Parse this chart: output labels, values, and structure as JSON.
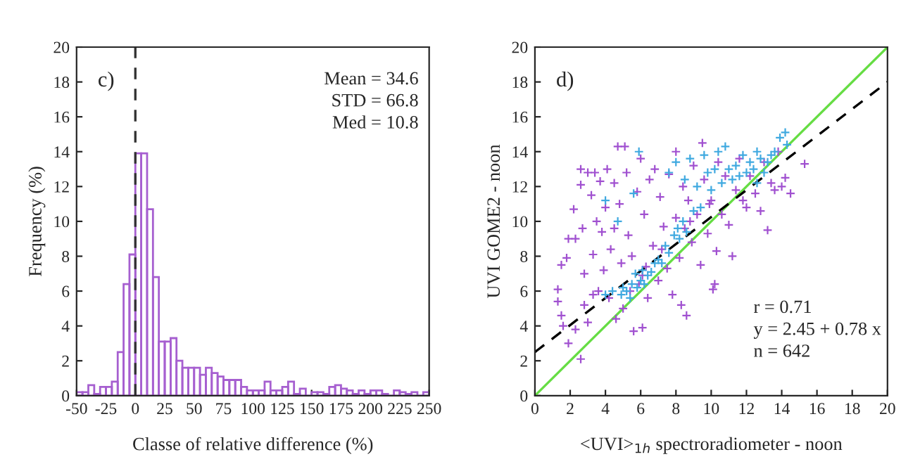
{
  "chart_data": [
    {
      "type": "histogram",
      "xlabel": "Classe of relative difference (%)",
      "ylabel": "Frequency (%)",
      "bins": [
        -50,
        -45,
        -40,
        -35,
        -30,
        -25,
        -20,
        -15,
        -10,
        -5,
        0,
        5,
        10,
        15,
        20,
        25,
        30,
        35,
        40,
        45,
        50,
        55,
        60,
        65,
        70,
        75,
        80,
        85,
        90,
        95,
        100,
        105,
        110,
        115,
        120,
        125,
        130,
        135,
        140,
        145,
        150,
        155,
        160,
        165,
        170,
        175,
        180,
        185,
        190,
        195,
        200,
        205,
        210,
        215,
        220,
        225,
        230,
        235,
        240,
        245,
        250
      ],
      "values": [
        0.2,
        0.2,
        0.6,
        0.1,
        0.5,
        0.5,
        0.8,
        2.5,
        6.4,
        8.1,
        13.9,
        13.9,
        10.7,
        6.8,
        3.1,
        3.1,
        3.3,
        2.0,
        1.6,
        1.6,
        1.6,
        1.2,
        1.6,
        1.3,
        1.1,
        0.9,
        0.9,
        0.9,
        0.5,
        0.3,
        0.3,
        0.3,
        0.8,
        0.3,
        0.3,
        0.5,
        0.8,
        0.1,
        0.4,
        0.0,
        0.2,
        0.2,
        0.1,
        0.5,
        0.6,
        0.4,
        0.3,
        0.1,
        0.3,
        0.1,
        0.3,
        0.3,
        0.1,
        0.0,
        0.3,
        0.2,
        0.1,
        0.2,
        0.0,
        0.2
      ],
      "color": "#a65fd0",
      "xlim": [
        -50,
        250
      ],
      "xticks": [
        -50,
        -25,
        0,
        25,
        50,
        75,
        100,
        125,
        150,
        175,
        200,
        225,
        250
      ],
      "ylim": [
        0,
        20
      ],
      "yticks": [
        0,
        2,
        4,
        6,
        8,
        10,
        12,
        14,
        16,
        18,
        20
      ],
      "ref_lines": [
        {
          "axis": "x",
          "value": 0,
          "color": "#333333",
          "line_style": "dashed"
        }
      ],
      "annotations": [
        "c)",
        "Mean = 34.6\nSTD = 66.8\nMed = 10.8"
      ],
      "grid": false
    },
    {
      "type": "scatter",
      "xlabel": "<UVI>$_{1h}$ spectroradiometer - noon",
      "ylabel": "UVI GOME2 - noon",
      "xlim": [
        0,
        20
      ],
      "xticks": [
        0,
        2,
        4,
        6,
        8,
        10,
        12,
        14,
        16,
        18,
        20
      ],
      "ylim": [
        0,
        20
      ],
      "yticks": [
        0,
        2,
        4,
        6,
        8,
        10,
        12,
        14,
        16,
        18,
        20
      ],
      "marker": "cross",
      "grid": false,
      "series": [
        {
          "type": "scatter",
          "color": "#a050d0",
          "x": [
            1.3,
            1.3,
            1.5,
            1.6,
            1.5,
            1.8,
            1.9,
            1.9,
            2.2,
            2.3,
            2.3,
            2.6,
            2.6,
            2.6,
            2.7,
            2.8,
            2.8,
            3.0,
            3.0,
            3.2,
            3.3,
            3.3,
            3.4,
            3.5,
            3.6,
            3.7,
            3.8,
            3.9,
            4.0,
            4.1,
            4.2,
            4.3,
            4.5,
            4.5,
            4.6,
            4.7,
            4.8,
            4.9,
            5.0,
            5.1,
            5.2,
            5.3,
            5.5,
            5.6,
            5.8,
            5.9,
            6.0,
            6.1,
            6.2,
            6.4,
            6.5,
            6.7,
            6.8,
            7.0,
            7.1,
            7.3,
            7.5,
            7.6,
            7.8,
            8.0,
            8.0,
            8.2,
            8.3,
            8.4,
            8.5,
            8.6,
            8.7,
            8.9,
            9.0,
            9.2,
            9.4,
            9.5,
            9.6,
            9.8,
            10.0,
            10.1,
            10.2,
            10.3,
            10.4,
            10.6,
            10.8,
            11.0,
            11.2,
            11.4,
            11.6,
            11.8,
            12.0,
            12.2,
            12.5,
            12.8,
            13.0,
            13.2,
            13.4,
            13.6,
            13.8,
            14.2,
            14.5,
            15.3,
            14.0,
            6.3,
            7.2,
            5.4,
            6.1,
            8.8,
            9.9
          ],
          "values": [
            6.1,
            5.4,
            4.6,
            4.0,
            7.5,
            7.9,
            9.0,
            3.0,
            10.7,
            9.0,
            3.8,
            13.0,
            12.1,
            2.1,
            9.6,
            5.2,
            7.0,
            12.8,
            4.2,
            11.5,
            8.1,
            5.8,
            12.8,
            10.0,
            6.0,
            12.3,
            9.4,
            7.2,
            10.8,
            13.0,
            5.6,
            8.4,
            12.2,
            9.6,
            4.4,
            14.3,
            11.0,
            7.6,
            5.0,
            14.3,
            12.8,
            9.2,
            8.0,
            3.7,
            11.7,
            6.4,
            13.6,
            3.9,
            10.4,
            5.6,
            12.4,
            8.6,
            13.0,
            6.6,
            11.4,
            9.7,
            7.3,
            12.7,
            5.8,
            10.2,
            14.0,
            7.9,
            5.2,
            12.0,
            9.6,
            4.6,
            11.2,
            8.8,
            13.2,
            10.4,
            7.5,
            14.5,
            12.4,
            9.3,
            11.2,
            6.1,
            6.4,
            8.3,
            13.4,
            10.4,
            12.6,
            9.8,
            8.0,
            11.8,
            13.6,
            11.2,
            10.8,
            12.6,
            11.6,
            10.6,
            13.4,
            9.5,
            12.2,
            11.8,
            14.0,
            12.5,
            11.6,
            13.3,
            12.0,
            7.4,
            8.4,
            6.0,
            6.9,
            10.0,
            11.0
          ]
        },
        {
          "type": "scatter",
          "color": "#3fa9e0",
          "x": [
            4.0,
            4.0,
            4.4,
            4.7,
            4.9,
            5.0,
            5.2,
            5.4,
            5.5,
            5.6,
            5.7,
            5.8,
            5.9,
            6.0,
            6.1,
            6.2,
            6.4,
            6.6,
            6.8,
            7.0,
            7.2,
            7.4,
            7.6,
            7.9,
            8.0,
            8.1,
            8.2,
            8.4,
            8.5,
            8.6,
            8.8,
            9.0,
            9.2,
            9.4,
            9.6,
            9.8,
            10.0,
            10.2,
            10.4,
            10.6,
            10.8,
            11.0,
            11.2,
            11.4,
            11.6,
            11.8,
            12.0,
            12.2,
            12.4,
            12.6,
            12.8,
            13.0,
            13.2,
            13.4,
            13.6,
            13.9,
            14.2,
            14.3,
            12.6,
            7.6
          ],
          "values": [
            11.2,
            5.8,
            6.0,
            10.0,
            5.8,
            6.2,
            6.0,
            5.6,
            6.4,
            11.6,
            7.0,
            6.2,
            14.0,
            6.6,
            7.2,
            6.4,
            6.9,
            7.1,
            7.6,
            7.8,
            7.6,
            8.6,
            8.2,
            9.2,
            13.4,
            9.6,
            9.0,
            10.0,
            12.4,
            9.4,
            13.6,
            10.6,
            12.0,
            10.8,
            13.8,
            12.8,
            11.8,
            13.0,
            14.0,
            12.2,
            14.3,
            13.0,
            12.4,
            13.2,
            12.6,
            13.8,
            12.8,
            13.4,
            13.0,
            14.0,
            13.6,
            12.8,
            13.4,
            13.8,
            14.0,
            14.8,
            15.1,
            14.4,
            12.2,
            12.8
          ]
        },
        {
          "type": "line",
          "color": "#66dd44",
          "line_style": "solid",
          "marker": "none",
          "x": [
            0,
            20
          ],
          "values": [
            0,
            20
          ]
        },
        {
          "type": "line",
          "color": "#000000",
          "line_style": "dashed",
          "marker": "none",
          "x": [
            0,
            20
          ],
          "values": [
            2.5,
            18.0
          ]
        }
      ],
      "annotations": [
        "d)",
        "r = 0.71\ny = 2.45 + 0.78 x\nn = 642"
      ]
    }
  ]
}
